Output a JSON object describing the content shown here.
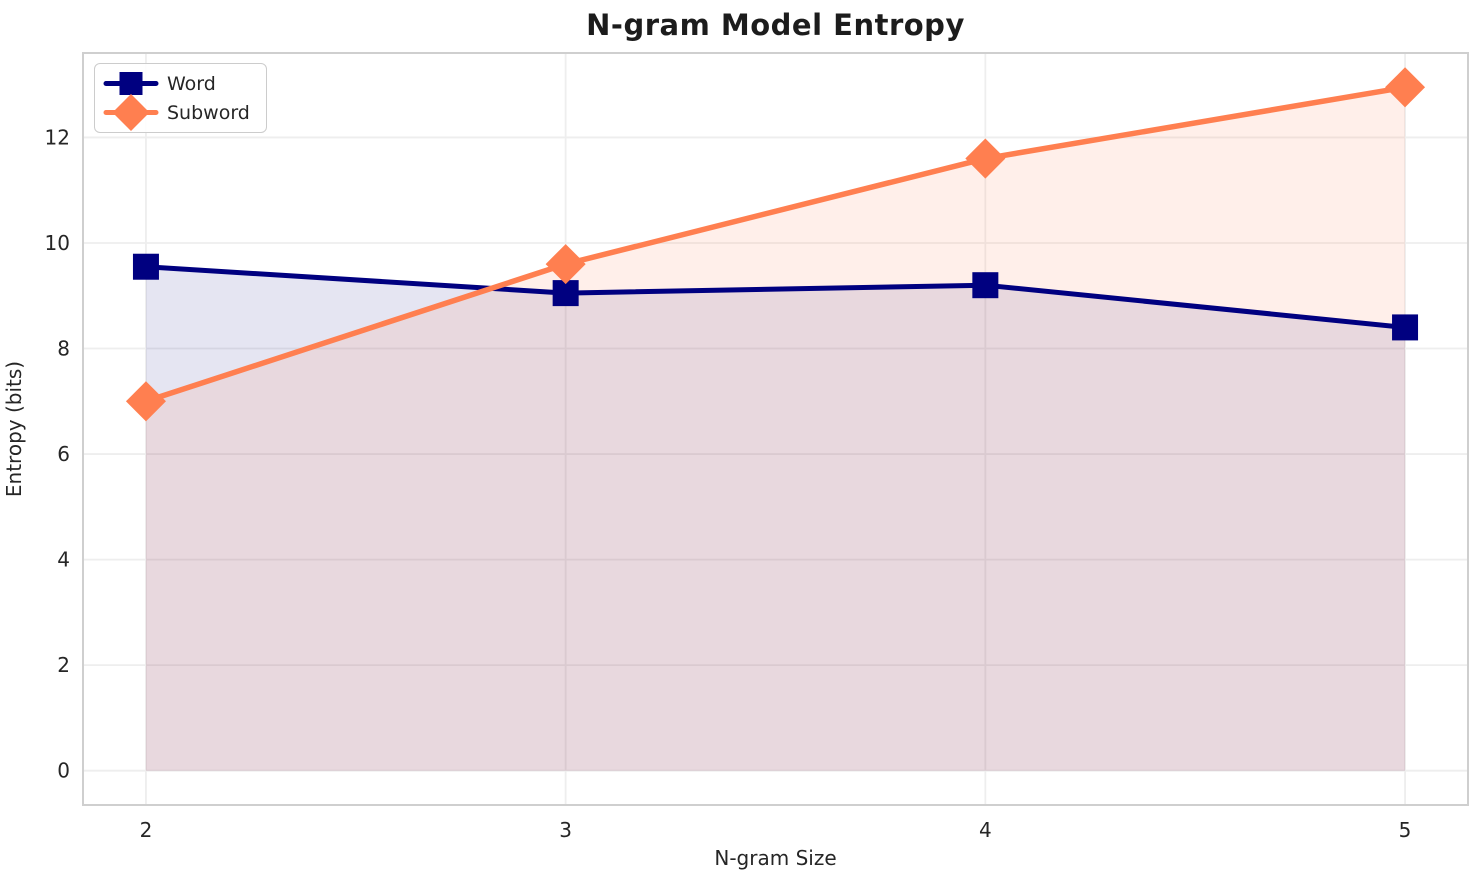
{
  "chart_data": {
    "type": "line",
    "title": "N-gram Model Entropy",
    "xlabel": "N-gram Size",
    "ylabel": "Entropy (bits)",
    "x": [
      2,
      3,
      4,
      5
    ],
    "series": [
      {
        "name": "Word",
        "color": "#000080",
        "marker": "square",
        "values": [
          9.55,
          9.05,
          9.2,
          8.4
        ],
        "fill_alpha": 0.1,
        "line_width": 5
      },
      {
        "name": "Subword",
        "color": "#FF7F50",
        "marker": "diamond",
        "values": [
          7.0,
          9.6,
          11.6,
          12.95
        ],
        "fill_alpha": 0.12,
        "line_width": 5.5
      }
    ],
    "xticks": [
      2,
      3,
      4,
      5
    ],
    "yticks": [
      0,
      2,
      4,
      6,
      8,
      10,
      12
    ],
    "xlim": [
      1.85,
      5.15
    ],
    "ylim": [
      -0.65,
      13.6
    ],
    "fill_to_zero": true,
    "grid": true,
    "legend_position": "upper-left"
  },
  "colors": {
    "background": "#ffffff",
    "grid": "#eeeeee",
    "spine": "#cfcfcf",
    "tick_text": "#262626",
    "title_text": "#1c1c1c"
  }
}
